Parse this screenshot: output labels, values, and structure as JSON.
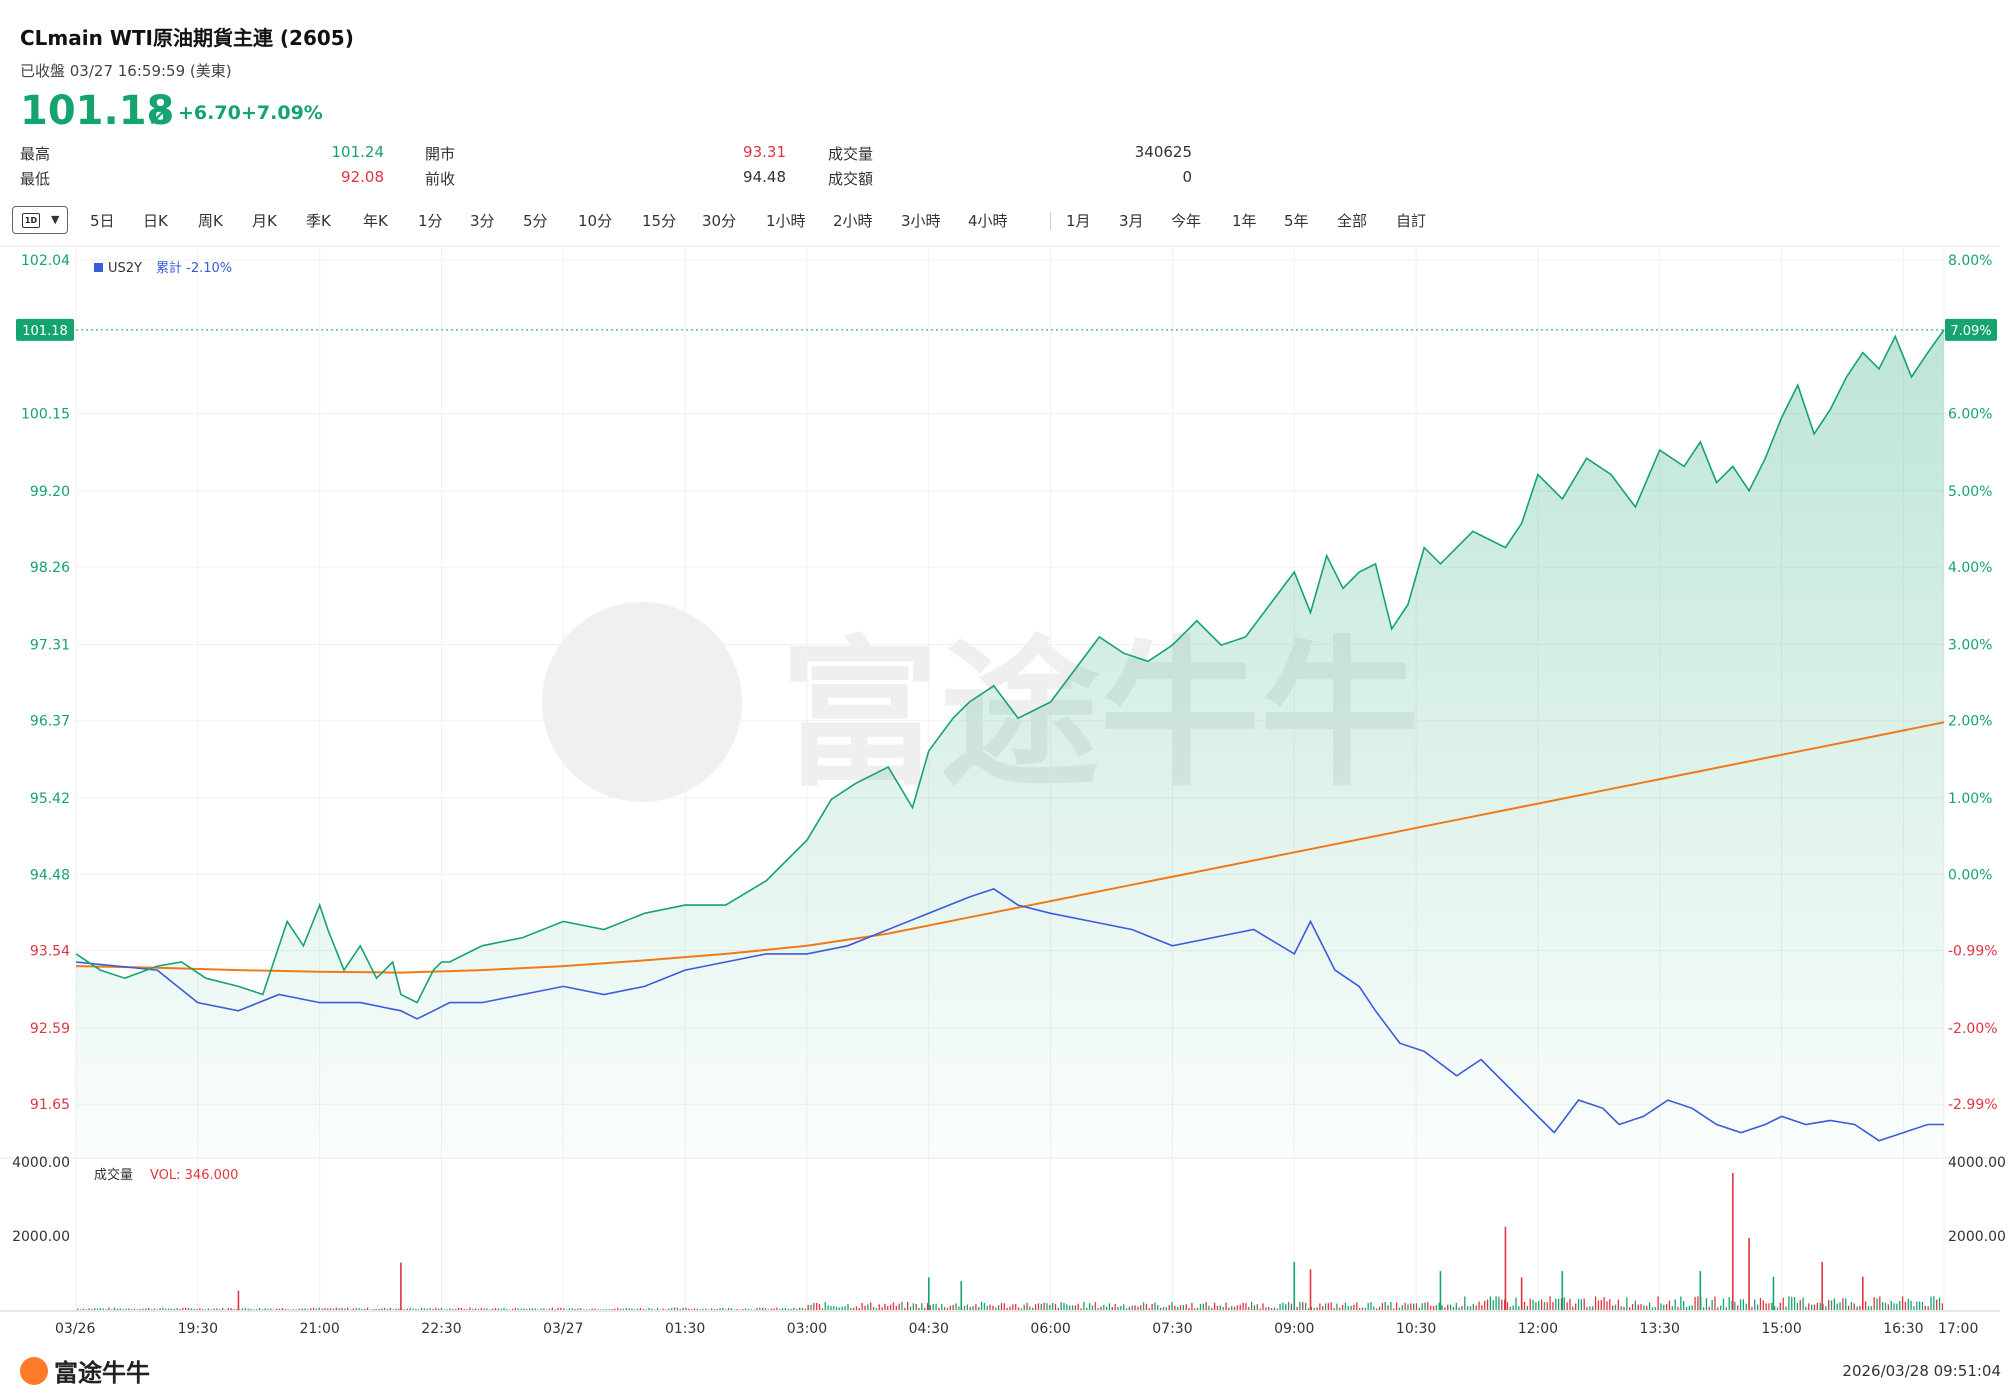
{
  "header": {
    "title": "CLmain  WTI原油期貨主連 (2605)",
    "status": "已收盤 03/27 16:59:59 (美東)",
    "price": "101.18",
    "change": "+6.70",
    "change_pct": "+7.09%"
  },
  "stats": {
    "high_label": "最高",
    "high": "101.24",
    "low_label": "最低",
    "low": "92.08",
    "open_label": "開市",
    "open": "93.31",
    "prev_label": "前收",
    "prev": "94.48",
    "vol_label": "成交量",
    "vol": "340625",
    "amt_label": "成交額",
    "amt": "0"
  },
  "toolbar": {
    "selected": "1D",
    "items": [
      "5日",
      "日K",
      "周K",
      "月K",
      "季K",
      "年K",
      "1分",
      "3分",
      "5分",
      "10分",
      "15分",
      "30分",
      "1小時",
      "2小時",
      "3小時",
      "4小時",
      "1月",
      "3月",
      "今年",
      "1年",
      "5年",
      "全部",
      "自訂"
    ]
  },
  "chart_data": {
    "type": "line",
    "legend": {
      "name": "US2Y",
      "label": "累計",
      "value": "-2.10%"
    },
    "y_left_ticks": [
      "102.04",
      "100.15",
      "99.20",
      "98.26",
      "97.31",
      "96.37",
      "95.42",
      "94.48",
      "93.54",
      "92.59",
      "91.65"
    ],
    "y_right_ticks": [
      "8.00%",
      "6.00%",
      "5.00%",
      "4.00%",
      "3.00%",
      "2.00%",
      "1.00%",
      "0.00%",
      "-0.99%",
      "-2.00%",
      "-2.99%"
    ],
    "ylim": [
      91.0,
      102.2
    ],
    "prev_close": 94.48,
    "last_price_label": "101.18",
    "last_pct_label": "7.09%",
    "x_ticks": [
      "03/26",
      "19:30",
      "21:00",
      "22:30",
      "03/27",
      "01:30",
      "03:00",
      "04:30",
      "06:00",
      "07:30",
      "09:00",
      "10:30",
      "12:00",
      "13:30",
      "15:00",
      "16:30",
      "17:00"
    ],
    "x_tick_hours": [
      0,
      1.5,
      3,
      4.5,
      6,
      7.5,
      9,
      10.5,
      12,
      13.5,
      15,
      16.5,
      18,
      19.5,
      21,
      22.5,
      23
    ],
    "x_range_hours": [
      0,
      23
    ],
    "series": [
      {
        "name": "CLmain",
        "color": "#15a36e",
        "x": [
          0,
          0.3,
          0.6,
          1,
          1.3,
          1.6,
          2,
          2.3,
          2.6,
          2.8,
          3,
          3.1,
          3.3,
          3.5,
          3.7,
          3.9,
          4,
          4.2,
          4.4,
          4.5,
          4.6,
          4.8,
          5,
          5.5,
          6,
          6.5,
          7,
          7.5,
          8,
          8.5,
          9,
          9.3,
          9.6,
          10,
          10.3,
          10.5,
          10.8,
          11,
          11.3,
          11.6,
          12,
          12.3,
          12.6,
          12.9,
          13.2,
          13.5,
          13.8,
          14.1,
          14.4,
          14.7,
          15,
          15.2,
          15.4,
          15.6,
          15.8,
          16,
          16.2,
          16.4,
          16.6,
          16.8,
          17,
          17.2,
          17.4,
          17.6,
          17.8,
          18,
          18.3,
          18.6,
          18.9,
          19.2,
          19.5,
          19.8,
          20,
          20.2,
          20.4,
          20.6,
          20.8,
          21,
          21.2,
          21.4,
          21.6,
          21.8,
          22,
          22.2,
          22.4,
          22.6,
          22.8,
          23
        ],
        "y": [
          93.5,
          93.3,
          93.2,
          93.35,
          93.4,
          93.2,
          93.1,
          93.0,
          93.9,
          93.6,
          94.1,
          93.8,
          93.3,
          93.6,
          93.2,
          93.4,
          93.0,
          92.9,
          93.3,
          93.4,
          93.4,
          93.5,
          93.6,
          93.7,
          93.9,
          93.8,
          94.0,
          94.1,
          94.1,
          94.4,
          94.9,
          95.4,
          95.6,
          95.8,
          95.3,
          96.0,
          96.4,
          96.6,
          96.8,
          96.4,
          96.6,
          97.0,
          97.4,
          97.2,
          97.1,
          97.3,
          97.6,
          97.3,
          97.4,
          97.8,
          98.2,
          97.7,
          98.4,
          98.0,
          98.2,
          98.3,
          97.5,
          97.8,
          98.5,
          98.3,
          98.5,
          98.7,
          98.6,
          98.5,
          98.8,
          99.4,
          99.1,
          99.6,
          99.4,
          99.0,
          99.7,
          99.5,
          99.8,
          99.3,
          99.5,
          99.2,
          99.6,
          100.1,
          100.5,
          99.9,
          100.2,
          100.6,
          100.9,
          100.7,
          101.1,
          100.6,
          100.9,
          101.18
        ]
      },
      {
        "name": "US2Y",
        "color": "#3b5bdb",
        "x": [
          0,
          0.5,
          1,
          1.5,
          2,
          2.5,
          3,
          3.5,
          4,
          4.2,
          4.4,
          4.6,
          5,
          5.5,
          6,
          6.5,
          7,
          7.5,
          8,
          8.5,
          9,
          9.5,
          10,
          10.5,
          11,
          11.3,
          11.6,
          12,
          12.5,
          13,
          13.5,
          14,
          14.5,
          15,
          15.2,
          15.5,
          15.8,
          16,
          16.3,
          16.6,
          17,
          17.3,
          17.5,
          17.7,
          17.9,
          18.2,
          18.5,
          18.8,
          19,
          19.3,
          19.6,
          19.9,
          20.2,
          20.5,
          20.8,
          21,
          21.3,
          21.6,
          21.9,
          22.2,
          22.5,
          22.8,
          23
        ],
        "y": [
          93.4,
          93.35,
          93.3,
          92.9,
          92.8,
          93.0,
          92.9,
          92.9,
          92.8,
          92.7,
          92.8,
          92.9,
          92.9,
          93.0,
          93.1,
          93.0,
          93.1,
          93.3,
          93.4,
          93.5,
          93.5,
          93.6,
          93.8,
          94.0,
          94.2,
          94.3,
          94.1,
          94.0,
          93.9,
          93.8,
          93.6,
          93.7,
          93.8,
          93.5,
          93.9,
          93.3,
          93.1,
          92.8,
          92.4,
          92.3,
          92.0,
          92.2,
          92.0,
          91.8,
          91.6,
          91.3,
          91.7,
          91.6,
          91.4,
          91.5,
          91.7,
          91.6,
          91.4,
          91.3,
          91.4,
          91.5,
          91.4,
          91.45,
          91.4,
          91.2,
          91.3,
          91.4,
          91.4
        ]
      },
      {
        "name": "MA",
        "color": "#f07a1a",
        "x": [
          0,
          1,
          2,
          3,
          4,
          5,
          6,
          7,
          8,
          9,
          10,
          11,
          12,
          13,
          14,
          15,
          16,
          17,
          18,
          19,
          20,
          21,
          22,
          23
        ],
        "y": [
          93.35,
          93.33,
          93.3,
          93.28,
          93.27,
          93.3,
          93.35,
          93.42,
          93.5,
          93.6,
          93.75,
          93.95,
          94.15,
          94.35,
          94.55,
          94.75,
          94.95,
          95.15,
          95.35,
          95.55,
          95.75,
          95.95,
          96.15,
          96.35
        ]
      }
    ],
    "volume": {
      "label": "成交量",
      "vol_text": "VOL: 346.000",
      "ticks": [
        "4000.00",
        "2000.00"
      ],
      "ylim": [
        0,
        4000
      ],
      "spikes": [
        {
          "x": 2.0,
          "v": 520,
          "c": "red"
        },
        {
          "x": 4.0,
          "v": 1280,
          "c": "red"
        },
        {
          "x": 10.5,
          "v": 880,
          "c": "green"
        },
        {
          "x": 10.9,
          "v": 780,
          "c": "green"
        },
        {
          "x": 15.0,
          "v": 1300,
          "c": "green"
        },
        {
          "x": 15.2,
          "v": 1100,
          "c": "red"
        },
        {
          "x": 16.8,
          "v": 1050,
          "c": "green"
        },
        {
          "x": 17.6,
          "v": 2250,
          "c": "red"
        },
        {
          "x": 17.8,
          "v": 880,
          "c": "red"
        },
        {
          "x": 18.3,
          "v": 1050,
          "c": "green"
        },
        {
          "x": 20.0,
          "v": 1050,
          "c": "green"
        },
        {
          "x": 20.4,
          "v": 3700,
          "c": "red"
        },
        {
          "x": 20.6,
          "v": 1950,
          "c": "red"
        },
        {
          "x": 20.9,
          "v": 900,
          "c": "green"
        },
        {
          "x": 21.5,
          "v": 1300,
          "c": "red"
        },
        {
          "x": 22.0,
          "v": 900,
          "c": "red"
        }
      ]
    }
  },
  "footer": {
    "logo": "富途牛牛",
    "timestamp": "2026/03/28 09:51:04"
  }
}
